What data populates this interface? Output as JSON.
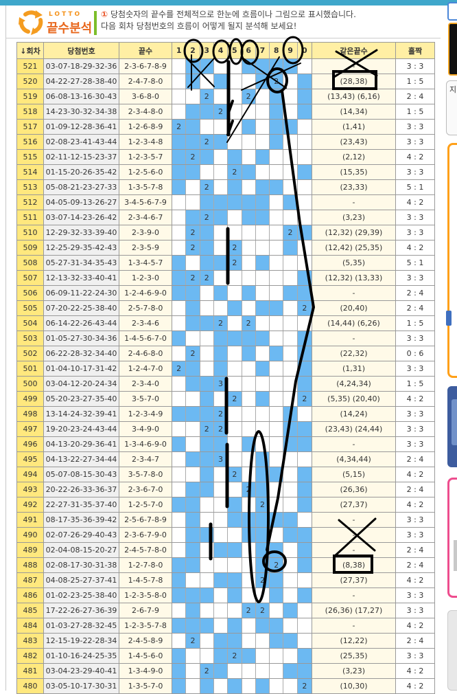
{
  "page": {
    "brand": "LOTTO",
    "title": "끝수분석",
    "notice_icon": "①",
    "description_line1": "당첨숫자의 끝수를 전체적으로 한눈에 흐름이나 그림으로 표시했습니다.",
    "description_line2": "다음 회차 당첨번호의 흐름이 어떻게 될지 분석해 보세요!",
    "sidebar_fragment_text": "지"
  },
  "colors": {
    "topbar": "#3FA7CB",
    "accent_orange": "#E8671C",
    "green_bar": "#7CBE2A",
    "header_bg": "#FFEFA4",
    "round_bg": "#FFE87E",
    "grid_highlight": "#6CB9F2",
    "cream_bg": "#FFFAE8"
  },
  "table": {
    "headers": {
      "round": "↓회차",
      "numbers": "당첨번호",
      "ends": "끝수",
      "digits": [
        "1",
        "2",
        "3",
        "4",
        "5",
        "6",
        "7",
        "8",
        "9",
        "0"
      ],
      "same_ends": "같은끝수",
      "odd_even": "홀짝"
    },
    "rows": [
      {
        "round": "521",
        "numbers": "03-07-18-29-32-36",
        "ends": "2-3-6-7-8-9",
        "counts": [
          0,
          1,
          1,
          0,
          0,
          1,
          1,
          1,
          1,
          0
        ],
        "same_ends": "-",
        "odd_even": "3 : 3"
      },
      {
        "round": "520",
        "numbers": "04-22-27-28-38-40",
        "ends": "2-4-7-8-0",
        "counts": [
          0,
          1,
          0,
          1,
          0,
          0,
          1,
          2,
          0,
          1
        ],
        "same_ends": "(28,38)",
        "odd_even": "1 : 5"
      },
      {
        "round": "519",
        "numbers": "06-08-13-16-30-43",
        "ends": "3-6-8-0",
        "counts": [
          0,
          0,
          2,
          0,
          0,
          2,
          0,
          1,
          0,
          1
        ],
        "same_ends": "(13,43) (6,16)",
        "odd_even": "2 : 4"
      },
      {
        "round": "518",
        "numbers": "14-23-30-32-34-38",
        "ends": "2-3-4-8-0",
        "counts": [
          0,
          1,
          1,
          2,
          0,
          0,
          0,
          1,
          0,
          1
        ],
        "same_ends": "(14,34)",
        "odd_even": "1 : 5"
      },
      {
        "round": "517",
        "numbers": "01-09-12-28-36-41",
        "ends": "1-2-6-8-9",
        "counts": [
          2,
          1,
          0,
          0,
          0,
          1,
          0,
          1,
          1,
          0
        ],
        "same_ends": "(1,41)",
        "odd_even": "3 : 3"
      },
      {
        "round": "516",
        "numbers": "02-08-23-41-43-44",
        "ends": "1-2-3-4-8",
        "counts": [
          1,
          1,
          2,
          1,
          0,
          0,
          0,
          1,
          0,
          0
        ],
        "same_ends": "(23,43)",
        "odd_even": "3 : 3"
      },
      {
        "round": "515",
        "numbers": "02-11-12-15-23-37",
        "ends": "1-2-3-5-7",
        "counts": [
          1,
          2,
          1,
          0,
          1,
          0,
          1,
          0,
          0,
          0
        ],
        "same_ends": "(2,12)",
        "odd_even": "4 : 2"
      },
      {
        "round": "514",
        "numbers": "01-15-20-26-35-42",
        "ends": "1-2-5-6-0",
        "counts": [
          1,
          1,
          0,
          0,
          2,
          1,
          0,
          0,
          0,
          1
        ],
        "same_ends": "(15,35)",
        "odd_even": "3 : 3"
      },
      {
        "round": "513",
        "numbers": "05-08-21-23-27-33",
        "ends": "1-3-5-7-8",
        "counts": [
          1,
          0,
          2,
          0,
          1,
          0,
          1,
          1,
          0,
          0
        ],
        "same_ends": "(23,33)",
        "odd_even": "5 : 1"
      },
      {
        "round": "512",
        "numbers": "04-05-09-13-26-27",
        "ends": "3-4-5-6-7-9",
        "counts": [
          0,
          0,
          1,
          1,
          1,
          1,
          1,
          0,
          1,
          0
        ],
        "same_ends": "-",
        "odd_even": "4 : 2"
      },
      {
        "round": "511",
        "numbers": "03-07-14-23-26-42",
        "ends": "2-3-4-6-7",
        "counts": [
          0,
          1,
          2,
          1,
          0,
          1,
          1,
          0,
          0,
          0
        ],
        "same_ends": "(3,23)",
        "odd_even": "3 : 3"
      },
      {
        "round": "510",
        "numbers": "12-29-32-33-39-40",
        "ends": "2-3-9-0",
        "counts": [
          0,
          2,
          1,
          0,
          0,
          0,
          0,
          0,
          2,
          1
        ],
        "same_ends": "(12,32) (29,39)",
        "odd_even": "3 : 3"
      },
      {
        "round": "509",
        "numbers": "12-25-29-35-42-43",
        "ends": "2-3-5-9",
        "counts": [
          0,
          2,
          1,
          0,
          2,
          0,
          0,
          0,
          1,
          0
        ],
        "same_ends": "(12,42) (25,35)",
        "odd_even": "4 : 2"
      },
      {
        "round": "508",
        "numbers": "05-27-31-34-35-43",
        "ends": "1-3-4-5-7",
        "counts": [
          1,
          0,
          1,
          1,
          2,
          0,
          1,
          0,
          0,
          0
        ],
        "same_ends": "(5,35)",
        "odd_even": "5 : 1"
      },
      {
        "round": "507",
        "numbers": "12-13-32-33-40-41",
        "ends": "1-2-3-0",
        "counts": [
          1,
          2,
          2,
          0,
          0,
          0,
          0,
          0,
          0,
          1
        ],
        "same_ends": "(12,32) (13,33)",
        "odd_even": "3 : 3"
      },
      {
        "round": "506",
        "numbers": "06-09-11-22-24-30",
        "ends": "1-2-4-6-9-0",
        "counts": [
          1,
          1,
          0,
          1,
          0,
          1,
          0,
          0,
          1,
          1
        ],
        "same_ends": "-",
        "odd_even": "2 : 4"
      },
      {
        "round": "505",
        "numbers": "07-20-22-25-38-40",
        "ends": "2-5-7-8-0",
        "counts": [
          0,
          1,
          0,
          0,
          1,
          0,
          1,
          1,
          0,
          2
        ],
        "same_ends": "(20,40)",
        "odd_even": "2 : 4"
      },
      {
        "round": "504",
        "numbers": "06-14-22-26-43-44",
        "ends": "2-3-4-6",
        "counts": [
          0,
          1,
          1,
          2,
          0,
          2,
          0,
          0,
          0,
          0
        ],
        "same_ends": "(14,44) (6,26)",
        "odd_even": "1 : 5"
      },
      {
        "round": "503",
        "numbers": "01-05-27-30-34-36",
        "ends": "1-4-5-6-7-0",
        "counts": [
          1,
          0,
          0,
          1,
          1,
          1,
          1,
          0,
          0,
          1
        ],
        "same_ends": "-",
        "odd_even": "3 : 3"
      },
      {
        "round": "502",
        "numbers": "06-22-28-32-34-40",
        "ends": "2-4-6-8-0",
        "counts": [
          0,
          2,
          0,
          1,
          0,
          1,
          0,
          1,
          0,
          1
        ],
        "same_ends": "(22,32)",
        "odd_even": "0 : 6"
      },
      {
        "round": "501",
        "numbers": "01-04-10-17-31-42",
        "ends": "1-2-4-7-0",
        "counts": [
          2,
          1,
          0,
          1,
          0,
          0,
          1,
          0,
          0,
          1
        ],
        "same_ends": "(1,31)",
        "odd_even": "3 : 3"
      },
      {
        "round": "500",
        "numbers": "03-04-12-20-24-34",
        "ends": "2-3-4-0",
        "counts": [
          0,
          1,
          1,
          3,
          0,
          0,
          0,
          0,
          0,
          1
        ],
        "same_ends": "(4,24,34)",
        "odd_even": "1 : 5"
      },
      {
        "round": "499",
        "numbers": "05-20-23-27-35-40",
        "ends": "3-5-7-0",
        "counts": [
          0,
          0,
          1,
          0,
          2,
          0,
          1,
          0,
          0,
          2
        ],
        "same_ends": "(5,35) (20,40)",
        "odd_even": "4 : 2"
      },
      {
        "round": "498",
        "numbers": "13-14-24-32-39-41",
        "ends": "1-2-3-4-9",
        "counts": [
          1,
          1,
          1,
          2,
          0,
          0,
          0,
          0,
          1,
          0
        ],
        "same_ends": "(14,24)",
        "odd_even": "3 : 3"
      },
      {
        "round": "497",
        "numbers": "19-20-23-24-43-44",
        "ends": "3-4-9-0",
        "counts": [
          0,
          0,
          2,
          2,
          0,
          0,
          0,
          0,
          1,
          1
        ],
        "same_ends": "(23,43) (24,44)",
        "odd_even": "3 : 3"
      },
      {
        "round": "496",
        "numbers": "04-13-20-29-36-41",
        "ends": "1-3-4-6-9-0",
        "counts": [
          1,
          0,
          1,
          1,
          0,
          1,
          0,
          0,
          1,
          1
        ],
        "same_ends": "-",
        "odd_even": "3 : 3"
      },
      {
        "round": "495",
        "numbers": "04-13-22-27-34-44",
        "ends": "2-3-4-7",
        "counts": [
          0,
          1,
          1,
          3,
          0,
          0,
          1,
          0,
          0,
          0
        ],
        "same_ends": "(4,34,44)",
        "odd_even": "2 : 4"
      },
      {
        "round": "494",
        "numbers": "05-07-08-15-30-43",
        "ends": "3-5-7-8-0",
        "counts": [
          0,
          0,
          1,
          0,
          2,
          0,
          1,
          1,
          0,
          1
        ],
        "same_ends": "(5,15)",
        "odd_even": "4 : 2"
      },
      {
        "round": "493",
        "numbers": "20-22-26-33-36-37",
        "ends": "2-3-6-7-0",
        "counts": [
          0,
          1,
          1,
          0,
          0,
          2,
          1,
          0,
          0,
          1
        ],
        "same_ends": "(26,36)",
        "odd_even": "2 : 4"
      },
      {
        "round": "492",
        "numbers": "22-27-31-35-37-40",
        "ends": "1-2-5-7-0",
        "counts": [
          1,
          1,
          0,
          0,
          1,
          0,
          2,
          0,
          0,
          1
        ],
        "same_ends": "(27,37)",
        "odd_even": "4 : 2"
      },
      {
        "round": "491",
        "numbers": "08-17-35-36-39-42",
        "ends": "2-5-6-7-8-9",
        "counts": [
          0,
          1,
          0,
          0,
          1,
          1,
          1,
          1,
          1,
          0
        ],
        "same_ends": "-",
        "odd_even": "3 : 3"
      },
      {
        "round": "490",
        "numbers": "02-07-26-29-40-43",
        "ends": "2-3-6-7-9-0",
        "counts": [
          0,
          1,
          1,
          0,
          0,
          1,
          1,
          0,
          1,
          1
        ],
        "same_ends": "-",
        "odd_even": "3 : 3"
      },
      {
        "round": "489",
        "numbers": "02-04-08-15-20-27",
        "ends": "2-4-5-7-8-0",
        "counts": [
          0,
          1,
          0,
          1,
          1,
          0,
          1,
          1,
          0,
          1
        ],
        "same_ends": "-",
        "odd_even": "2 : 4"
      },
      {
        "round": "488",
        "numbers": "02-08-17-30-31-38",
        "ends": "1-2-7-8-0",
        "counts": [
          1,
          1,
          0,
          0,
          0,
          0,
          1,
          2,
          0,
          1
        ],
        "same_ends": "(8,38)",
        "odd_even": "2 : 4"
      },
      {
        "round": "487",
        "numbers": "04-08-25-27-37-41",
        "ends": "1-4-5-7-8",
        "counts": [
          1,
          0,
          0,
          1,
          1,
          0,
          2,
          1,
          0,
          0
        ],
        "same_ends": "(27,37)",
        "odd_even": "4 : 2"
      },
      {
        "round": "486",
        "numbers": "01-02-23-25-38-40",
        "ends": "1-2-3-5-8-0",
        "counts": [
          1,
          1,
          1,
          0,
          1,
          0,
          0,
          1,
          0,
          1
        ],
        "same_ends": "-",
        "odd_even": "3 : 3"
      },
      {
        "round": "485",
        "numbers": "17-22-26-27-36-39",
        "ends": "2-6-7-9",
        "counts": [
          0,
          1,
          0,
          0,
          0,
          2,
          2,
          0,
          1,
          0
        ],
        "same_ends": "(26,36) (17,27)",
        "odd_even": "3 : 3"
      },
      {
        "round": "484",
        "numbers": "01-03-27-28-32-45",
        "ends": "1-2-3-5-7-8",
        "counts": [
          1,
          1,
          1,
          0,
          1,
          0,
          1,
          1,
          0,
          0
        ],
        "same_ends": "-",
        "odd_even": "4 : 2"
      },
      {
        "round": "483",
        "numbers": "12-15-19-22-28-34",
        "ends": "2-4-5-8-9",
        "counts": [
          0,
          2,
          0,
          1,
          1,
          0,
          0,
          1,
          1,
          0
        ],
        "same_ends": "(12,22)",
        "odd_even": "2 : 4"
      },
      {
        "round": "482",
        "numbers": "01-10-16-24-25-35",
        "ends": "1-4-5-6-0",
        "counts": [
          1,
          0,
          0,
          1,
          2,
          1,
          0,
          0,
          0,
          1
        ],
        "same_ends": "(25,35)",
        "odd_even": "3 : 3"
      },
      {
        "round": "481",
        "numbers": "03-04-23-29-40-41",
        "ends": "1-3-4-9-0",
        "counts": [
          1,
          0,
          2,
          1,
          0,
          0,
          0,
          0,
          1,
          1
        ],
        "same_ends": "(3,23)",
        "odd_even": "4 : 2"
      },
      {
        "round": "480",
        "numbers": "03-05-10-17-30-31",
        "ends": "1-3-5-7-0",
        "counts": [
          1,
          0,
          1,
          0,
          1,
          0,
          1,
          0,
          0,
          2
        ],
        "same_ends": "(10,30)",
        "odd_even": "4 : 2"
      }
    ]
  },
  "annotations": {
    "style": "hand-drawn black marker",
    "header_digits_circled": [
      "2",
      "4",
      "5",
      "6",
      "9"
    ],
    "grid_cells_circled": [
      {
        "round": "520",
        "digit": "8",
        "value": "2"
      },
      {
        "round": "488",
        "digit": "8",
        "value": "2"
      }
    ],
    "same_ends_boxed": [
      {
        "round": "520",
        "value": "(28,38)"
      },
      {
        "round": "488",
        "value": "(8,38)"
      }
    ],
    "same_ends_crossed_out": [
      "521",
      "491-489"
    ],
    "grid_crossed_out": "round 521-520, digit columns 2-3 and 6-9",
    "vertical_strokes": [
      "digit 4/5 boundary rounds 521-517 with two tick marks",
      "rounds 510-507",
      "rounds 500-497",
      "rounds 496-492",
      "digit 3 rounds 490-488"
    ],
    "long_ellipse": "digit column 7, rounds 495-486",
    "trend_line": "circled 2 at round 520 digit 8 → elbow at round 505 → circled 2 at round 488 digit 8"
  }
}
